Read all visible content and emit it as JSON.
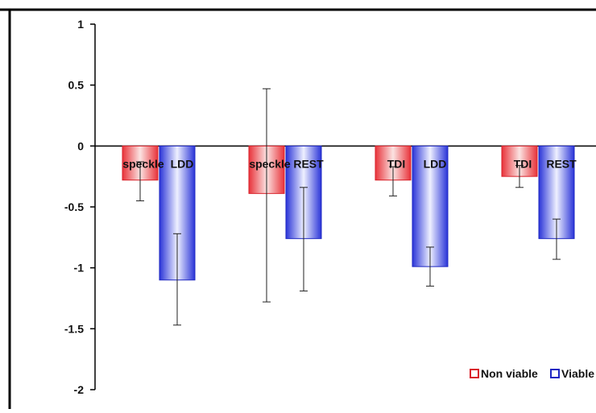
{
  "chart_data": {
    "type": "bar",
    "title": "",
    "xlabel": "",
    "ylabel": "",
    "ylim": [
      -2,
      1
    ],
    "yticks": [
      "1",
      "0.5",
      "0",
      "-0.5",
      "-1",
      "-1.5",
      "-2"
    ],
    "grid": false,
    "legend_position": "bottom-right",
    "categories": [
      "speckle LDD",
      "speckle REST",
      "TDI LDD",
      "TDI REST"
    ],
    "category_labels": [
      {
        "left": "speckle",
        "right": "LDD"
      },
      {
        "left": "speckle",
        "right": "REST"
      },
      {
        "left": "TDI",
        "right": "LDD"
      },
      {
        "left": "TDI",
        "right": "REST"
      }
    ],
    "series": [
      {
        "name": "Non viable",
        "color": "#e8333a",
        "values": [
          -0.28,
          -0.39,
          -0.28,
          -0.25
        ],
        "error_low": [
          -0.45,
          -1.28,
          -0.41,
          -0.34
        ],
        "error_high": [
          -0.13,
          0.47,
          -0.17,
          -0.16
        ]
      },
      {
        "name": "Viable",
        "color": "#2a34d8",
        "values": [
          -1.1,
          -0.76,
          -0.99,
          -0.76
        ],
        "error_low": [
          -1.47,
          -1.19,
          -1.15,
          -0.93
        ],
        "error_high": [
          -0.72,
          -0.34,
          -0.83,
          -0.6
        ]
      }
    ],
    "legend": [
      "Non viable",
      "Viable"
    ]
  }
}
